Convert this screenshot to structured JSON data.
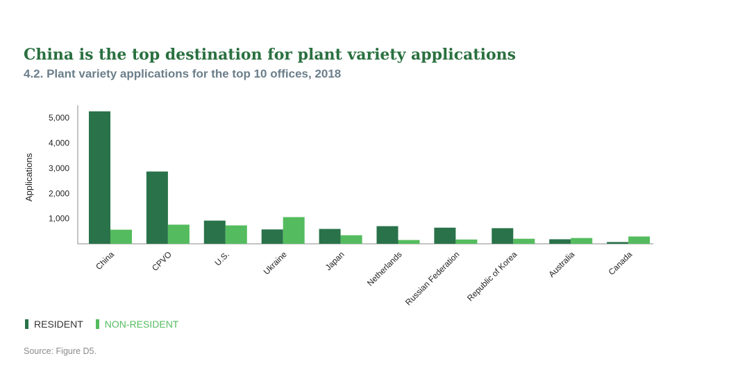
{
  "title": "China is the top destination for plant variety applications",
  "subtitle": "4.2. Plant variety applications for the top 10 offices, 2018",
  "source": "Source: Figure D5.",
  "colors": {
    "resident": "#29724a",
    "non_resident": "#54bc5e",
    "title": "#2a7040",
    "subtitle": "#6b7e8a",
    "axis": "#8a8a8a"
  },
  "chart_data": {
    "type": "bar",
    "ylabel": "Applications",
    "xlabel": "",
    "ylim": [
      0,
      5500
    ],
    "yticks": [
      1000,
      2000,
      3000,
      4000,
      5000
    ],
    "ytick_labels": [
      "1,000",
      "2,000",
      "3,000",
      "4,000",
      "5,000"
    ],
    "grid": false,
    "legend_position": "bottom-left",
    "categories": [
      "China",
      "CPVO",
      "U.S.",
      "Ukraine",
      "Japan",
      "Netherlands",
      "Russian Federation",
      "Republic of Korea",
      "Australia",
      "Canada"
    ],
    "series": [
      {
        "name": "RESIDENT",
        "values": [
          5260,
          2870,
          920,
          570,
          590,
          700,
          640,
          620,
          180,
          70
        ]
      },
      {
        "name": "NON-RESIDENT",
        "values": [
          560,
          760,
          730,
          1060,
          340,
          150,
          170,
          200,
          230,
          290
        ]
      }
    ]
  }
}
